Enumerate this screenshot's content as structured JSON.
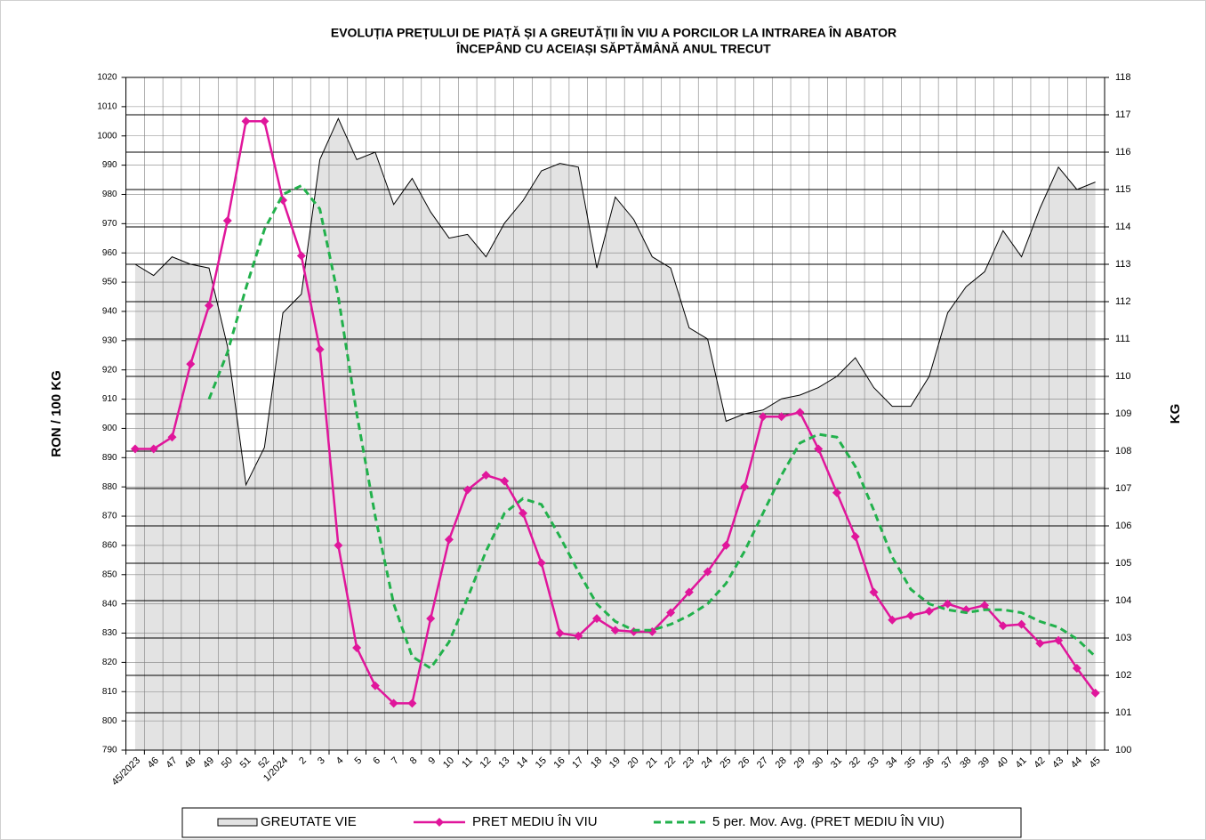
{
  "chart_data": {
    "type": "combo",
    "title": "EVOLUȚIA PREȚULUI DE PIAȚĂ ȘI A GREUTĂȚII  ÎN VIU A PORCILOR LA INTRAREA  ÎN ABATOR",
    "subtitle": "ÎNCEPÂND  CU ACEIAȘI SĂPTĂMÂNĂ ANUL TRECUT",
    "y_label": "RON / 100 KG",
    "y2_label": "KG",
    "categories": [
      "45/2023",
      "46",
      "47",
      "48",
      "49",
      "50",
      "51",
      "52",
      "1/2024",
      "2",
      "3",
      "4",
      "5",
      "6",
      "7",
      "8",
      "9",
      "10",
      "11",
      "12",
      "13",
      "14",
      "15",
      "16",
      "17",
      "18",
      "19",
      "20",
      "21",
      "22",
      "23",
      "24",
      "25",
      "26",
      "27",
      "28",
      "29",
      "30",
      "31",
      "32",
      "33",
      "34",
      "35",
      "36",
      "37",
      "38",
      "39",
      "40",
      "41",
      "42",
      "43",
      "44",
      "45"
    ],
    "ylim": [
      790,
      1020
    ],
    "yticks": [
      790,
      800,
      810,
      820,
      830,
      840,
      850,
      860,
      870,
      880,
      890,
      900,
      910,
      920,
      930,
      940,
      950,
      960,
      970,
      980,
      990,
      1000,
      1010,
      1020
    ],
    "y2lim": [
      100,
      118
    ],
    "y2ticks": [
      100,
      101,
      102,
      103,
      104,
      105,
      106,
      107,
      108,
      109,
      110,
      111,
      112,
      113,
      114,
      115,
      116,
      117,
      118
    ],
    "grid": true,
    "legend": "bottom",
    "series": [
      {
        "name": "GREUTATE VIE",
        "kind": "area",
        "axis": "y2",
        "color": "#e3e3e3",
        "values": [
          113.0,
          112.7,
          113.2,
          113.0,
          112.9,
          110.8,
          107.1,
          108.1,
          111.7,
          112.2,
          115.8,
          116.9,
          115.8,
          116.0,
          114.6,
          115.3,
          114.4,
          113.7,
          113.8,
          113.2,
          114.1,
          114.7,
          115.5,
          115.7,
          115.6,
          112.9,
          114.8,
          114.2,
          113.2,
          112.9,
          111.3,
          111.0,
          108.8,
          109.0,
          109.1,
          109.4,
          109.5,
          109.7,
          110.0,
          110.5,
          109.7,
          109.2,
          109.2,
          110.0,
          111.7,
          112.4,
          112.8,
          113.9,
          113.2,
          114.5,
          115.6,
          115.0,
          115.2
        ]
      },
      {
        "name": "PRET MEDIU ÎN VIU",
        "kind": "line",
        "marker": "diamond",
        "color": "#e0169b",
        "values": [
          893,
          893,
          897,
          922,
          942,
          971,
          1005,
          1005,
          978,
          959,
          927,
          860,
          825,
          812,
          806,
          806,
          835,
          862,
          879,
          884,
          882,
          871,
          854,
          830,
          829,
          835,
          831,
          830.5,
          830.5,
          837,
          844,
          851,
          860,
          880,
          904,
          904,
          905.5,
          893,
          878,
          863,
          844,
          834.5,
          836,
          837.5,
          840,
          838,
          839.5,
          832.5,
          833,
          826.5,
          827.5,
          818,
          809.5
        ]
      },
      {
        "name": "5 per. Mov. Avg. (PRET MEDIU ÎN VIU)",
        "kind": "line",
        "dashed": true,
        "color": "#22b14c",
        "values": [
          null,
          null,
          null,
          null,
          910,
          926,
          948,
          968,
          980,
          983,
          975,
          945,
          905,
          870,
          840,
          822,
          818,
          827,
          842,
          858,
          871,
          876,
          874,
          863,
          851,
          840,
          834,
          831,
          831,
          833,
          836,
          840,
          847,
          858,
          871,
          884,
          895,
          898,
          897,
          887,
          872,
          856,
          845,
          840,
          838,
          837,
          838,
          838,
          837,
          834,
          832,
          828,
          822
        ]
      }
    ]
  }
}
